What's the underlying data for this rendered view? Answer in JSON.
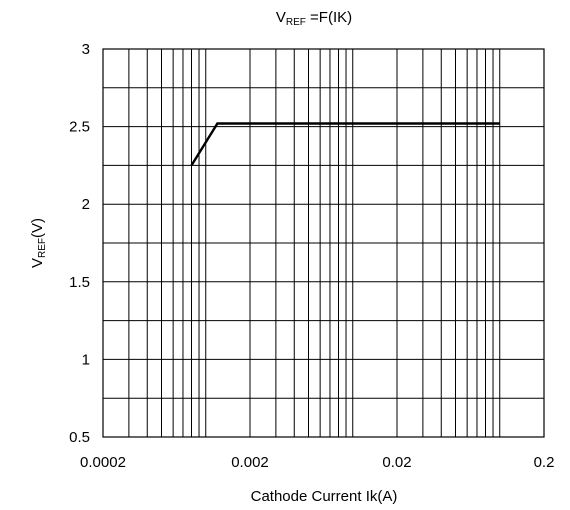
{
  "chart_data": {
    "type": "line",
    "title": {
      "main": "V",
      "sub": "REF",
      "rest": " =F(IK)"
    },
    "xlabel": "Cathode Current Ik(A)",
    "ylabel": {
      "main": "V",
      "sub": "REF",
      "rest": "(V)"
    },
    "xscale": "log",
    "xlim": [
      0.0002,
      0.2
    ],
    "ylim": [
      0.5,
      3
    ],
    "xticks": [
      {
        "value": 0.0002,
        "label": "0.0002"
      },
      {
        "value": 0.002,
        "label": "0.002"
      },
      {
        "value": 0.02,
        "label": "0.02"
      },
      {
        "value": 0.2,
        "label": "0.2"
      }
    ],
    "yticks": [
      {
        "value": 0.5,
        "label": "0.5"
      },
      {
        "value": 1,
        "label": "1"
      },
      {
        "value": 1.5,
        "label": "1.5"
      },
      {
        "value": 2,
        "label": "2"
      },
      {
        "value": 2.5,
        "label": "2.5"
      },
      {
        "value": 3,
        "label": "3"
      }
    ],
    "grid": true,
    "legend": "none",
    "series": [
      {
        "x": [
          0.0008,
          0.0012,
          0.1
        ],
        "y": [
          2.25,
          2.52,
          2.52
        ]
      }
    ]
  }
}
